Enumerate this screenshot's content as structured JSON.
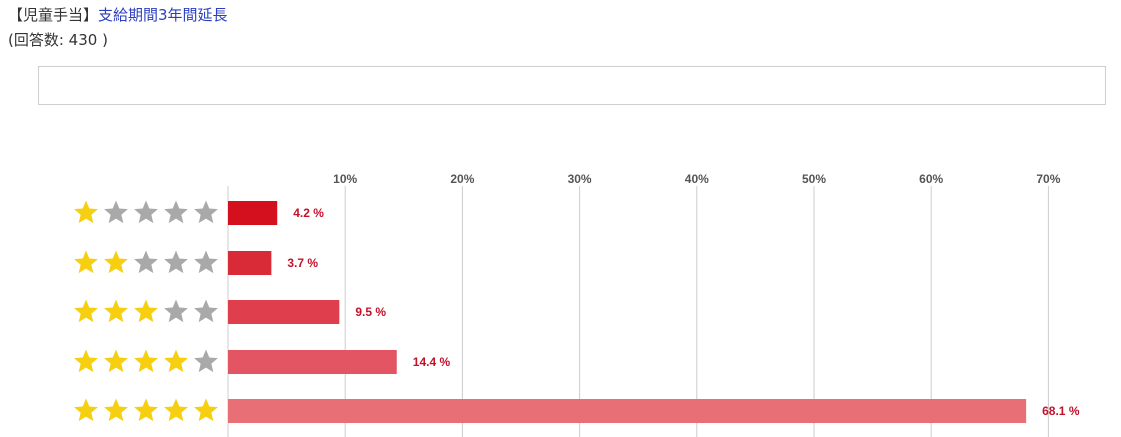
{
  "question": {
    "tag": "【児童手当】",
    "title": "支給期間3年間延長",
    "count_text": "(回答数: 430 )"
  },
  "comment_box": {
    "text": ""
  },
  "colors": {
    "star_on": "#f5cf10",
    "star_off": "#a9a9a9",
    "label": "#c3112a",
    "grid": "#cccccc",
    "bars": [
      "#d4101f",
      "#d92a38",
      "#df3f4c",
      "#e35563",
      "#e96f76"
    ]
  },
  "chart_data": {
    "type": "bar",
    "orientation": "horizontal",
    "categories": [
      "★☆☆☆☆",
      "★★☆☆☆",
      "★★★☆☆",
      "★★★★☆",
      "★★★★★"
    ],
    "stars": [
      1,
      2,
      3,
      4,
      5
    ],
    "max_stars": 5,
    "values": [
      4.2,
      3.7,
      9.5,
      14.4,
      68.1
    ],
    "value_labels": [
      "4.2 %",
      "3.7 %",
      "9.5 %",
      "14.4 %",
      "68.1 %"
    ],
    "xlim": [
      0,
      75
    ],
    "ticks": [
      10,
      20,
      30,
      40,
      50,
      60,
      70
    ],
    "tick_labels": [
      "10%",
      "20%",
      "30%",
      "40%",
      "50%",
      "60%",
      "70%"
    ],
    "title": "",
    "xlabel": "",
    "ylabel": "",
    "grid": true,
    "legend": "none"
  }
}
